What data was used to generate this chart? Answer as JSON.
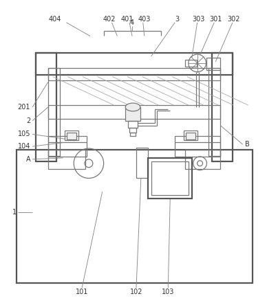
{
  "bg_color": "#ffffff",
  "lc": "#777777",
  "lc_thick": "#555555",
  "lw": 0.9,
  "lw_thick": 1.6,
  "lw_leader": 0.65,
  "fs": 7.0,
  "label_color": "#333333"
}
